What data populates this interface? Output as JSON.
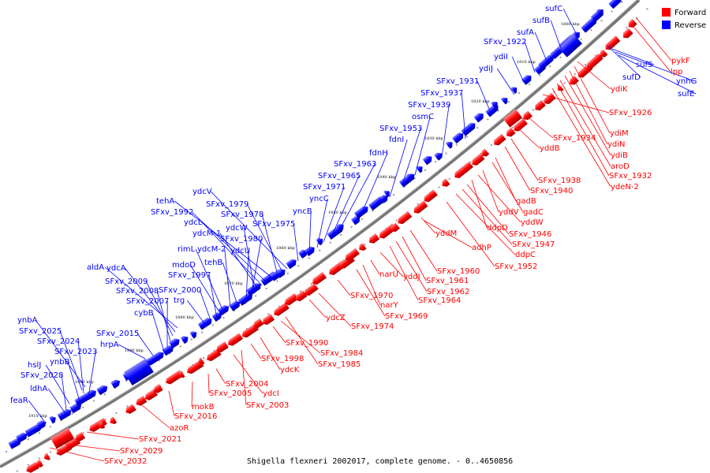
{
  "legend": {
    "forward": {
      "label": "Forward",
      "color": "#ff0000"
    },
    "reverse": {
      "label": "Reverse",
      "color": "#0000ff"
    }
  },
  "caption": "Shigella flexneri 2002017, complete genome. - 0..4650856",
  "ticks": [
    "1910 kbp",
    "1900 kbp",
    "1890 kbp",
    "1880 kbp",
    "1870 kbp",
    "1860 kbp",
    "1850 kbp",
    "1840 kbp",
    "1830 kbp",
    "1820 kbp",
    "1810 kbp",
    "1800 kbp"
  ],
  "reverse_labels": [
    "feaR",
    "ldhA",
    "SFxv_2028",
    "hslJ",
    "ynbB",
    "SFxv_2023",
    "SFxv_2024",
    "SFxv_2025",
    "ynbA",
    "hrpA",
    "SFxv_2015",
    "cybB",
    "SFxv_2007",
    "SFxv_2008",
    "SFxv_2009",
    "ydcA",
    "aldA",
    "trg",
    "SFxv_2000",
    "SFxv_1997",
    "mdoD",
    "rimL",
    "ydcM-2",
    "tehB",
    "ydcU",
    "SFxv_1980",
    "ydcW",
    "ydcM-1",
    "ydcL",
    "SFxv_1992",
    "tehA",
    "SFxv_1978",
    "SFxv_1979",
    "ydcV",
    "SFxv_1975",
    "yncB",
    "yncC",
    "SFxv_1971",
    "SFxv_1965",
    "SFxv_1963",
    "fdnH",
    "fdnI",
    "SFxv_1953",
    "osmC",
    "SFxv_1939",
    "SFxv_1937",
    "SFxv_1931",
    "ydiJ",
    "ydiI",
    "SFxv_1922",
    "sufA",
    "sufB",
    "sufC",
    "sufD",
    "sufS",
    "ynhG",
    "sufE"
  ],
  "forward_labels": [
    "SFxv_2032",
    "SFxv_2029",
    "SFxv_2021",
    "azoR",
    "SFxv_2016",
    "mokB",
    "SFxv_2005",
    "SFxv_2004",
    "ydcI",
    "SFxv_2003",
    "SFxv_1998",
    "ydcK",
    "SFxv_1990",
    "SFxv_1984",
    "SFxv_1985",
    "ydcZ",
    "SFxv_1974",
    "SFxv_1970",
    "SFxv_1969",
    "narY",
    "narU",
    "yddJ",
    "SFxv_1964",
    "SFxv_1962",
    "SFxv_1961",
    "SFxv_1960",
    "adhP",
    "yddM",
    "SFxv_1952",
    "ddpC",
    "SFxv_1947",
    "SFxv_1946",
    "ddpD",
    "yddW",
    "yddV",
    "gadC",
    "gadB",
    "SFxv_1940",
    "SFxv_1938",
    "yddB",
    "SFxv_1934",
    "SFxv_1926",
    "ydeN-2",
    "SFxv_1932",
    "aroD",
    "ydiB",
    "ydiN",
    "ydiM",
    "ydiK",
    "lpp",
    "pykF"
  ]
}
